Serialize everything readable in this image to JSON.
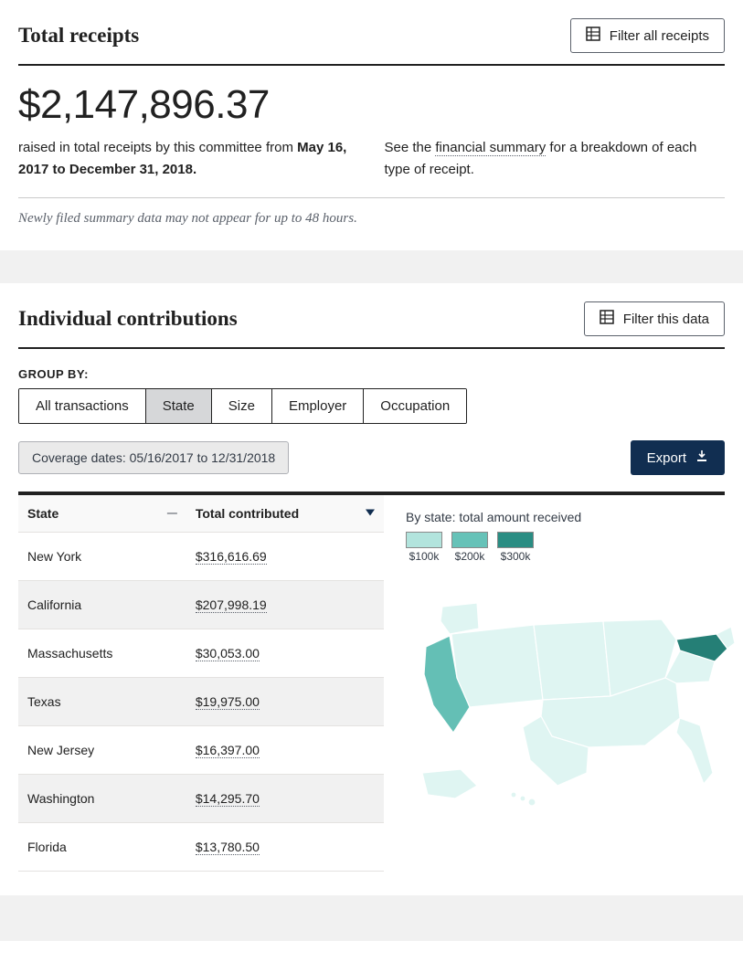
{
  "colors": {
    "text": "#212121",
    "muted": "#5b616b",
    "border_dark": "#212121",
    "border_light": "#c9c9c9",
    "band": "#f1f1f1",
    "seg_active_bg": "#d6d7d9",
    "coverage_bg": "#eaeaea",
    "export_bg": "#112e51",
    "row_alt": "#f1f1f1",
    "map_fill_base": "#dff5f2",
    "map_fill_mid": "#a7d9d2",
    "map_fill_dark": "#3f9e94",
    "map_fill_ny": "#257f76",
    "map_fill_ca": "#64bfb5",
    "map_stroke": "#ffffff"
  },
  "receipts": {
    "heading": "Total receipts",
    "filter_label": "Filter all receipts",
    "amount": "$2,147,896.37",
    "raised_prefix": "raised in total receipts by this committee from ",
    "date_range": "May 16, 2017 to December 31, 2018.",
    "see_prefix": "See the ",
    "summary_link": "financial summary",
    "see_suffix": " for a breakdown of each type of receipt.",
    "disclaimer": "Newly filed summary data may not appear for up to 48 hours."
  },
  "contrib": {
    "heading": "Individual contributions",
    "filter_label": "Filter this data",
    "group_by_label": "GROUP BY:",
    "segments": [
      "All transactions",
      "State",
      "Size",
      "Employer",
      "Occupation"
    ],
    "active_segment_index": 1,
    "coverage": "Coverage dates: 05/16/2017 to 12/31/2018",
    "export_label": "Export",
    "table": {
      "col_state": "State",
      "col_amount": "Total contributed",
      "rows": [
        {
          "state": "New York",
          "amount": "$316,616.69"
        },
        {
          "state": "California",
          "amount": "$207,998.19"
        },
        {
          "state": "Massachusetts",
          "amount": "$30,053.00"
        },
        {
          "state": "Texas",
          "amount": "$19,975.00"
        },
        {
          "state": "New Jersey",
          "amount": "$16,397.00"
        },
        {
          "state": "Washington",
          "amount": "$14,295.70"
        },
        {
          "state": "Florida",
          "amount": "$13,780.50"
        }
      ]
    },
    "map": {
      "caption": "By state: total amount received",
      "legend": [
        {
          "label": "$100k",
          "color": "#b2e4dd"
        },
        {
          "label": "$200k",
          "color": "#66c2b8"
        },
        {
          "label": "$300k",
          "color": "#2a8d83"
        }
      ]
    }
  }
}
